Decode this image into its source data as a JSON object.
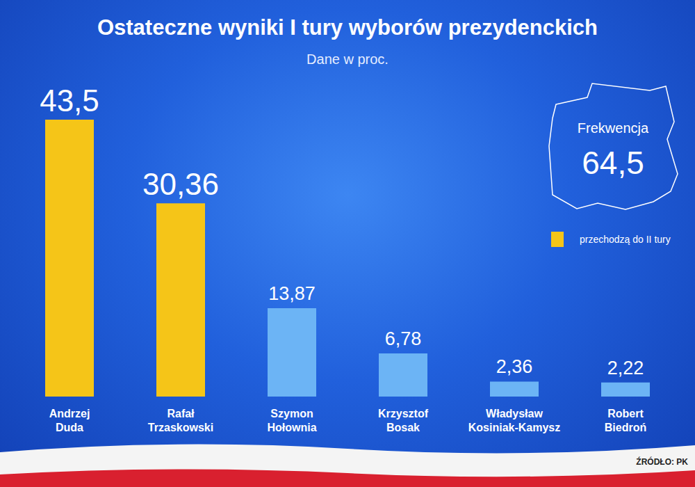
{
  "chart_data": {
    "type": "bar",
    "title": "Ostateczne wyniki I tury wyborów prezydenckich",
    "subtitle": "Dane w proc.",
    "categories": [
      "Andrzej Duda",
      "Rafał Trzaskowski",
      "Szymon Hołownia",
      "Krzysztof Bosak",
      "Władysław Kosiniak-Kamysz",
      "Robert Biedroń"
    ],
    "values": [
      43.5,
      30.36,
      13.87,
      6.78,
      2.36,
      2.22
    ],
    "value_labels": [
      "43,5",
      "30,36",
      "13,87",
      "6,78",
      "2,36",
      "2,22"
    ],
    "colors": [
      "#f5c518",
      "#f5c518",
      "#6cb4f5",
      "#6cb4f5",
      "#6cb4f5",
      "#6cb4f5"
    ],
    "data_labels": true,
    "grid": false,
    "tick_labels": "x",
    "legend": "top-right",
    "legend_entries": [
      {
        "label": "przechodzą do II tury",
        "color": "#f5c518"
      }
    ],
    "annotations": [
      {
        "text": "Frekwencja",
        "value": 64.5,
        "label": "64,5"
      }
    ],
    "source": "ŹRÓDŁO: PK"
  }
}
